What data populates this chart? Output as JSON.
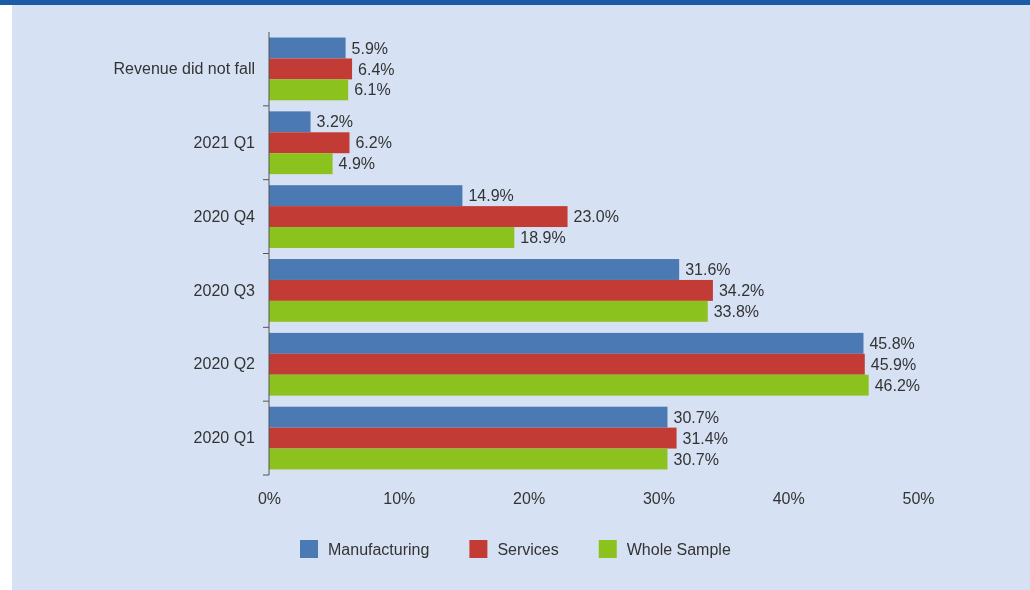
{
  "chart_data": {
    "type": "bar",
    "orientation": "horizontal",
    "categories": [
      "Revenue did not fall",
      "2021 Q1",
      "2020 Q4",
      "2020 Q3",
      "2020 Q2",
      "2020 Q1"
    ],
    "series": [
      {
        "name": "Manufacturing",
        "color": "#4b79b4",
        "values": [
          5.9,
          3.2,
          14.9,
          31.6,
          45.8,
          30.7
        ],
        "value_labels": [
          "5.9%",
          "3.2%",
          "14.9%",
          "31.6%",
          "45.8%",
          "30.7%"
        ]
      },
      {
        "name": "Services",
        "color": "#c33b35",
        "values": [
          6.4,
          6.2,
          23.0,
          34.2,
          45.9,
          31.4
        ],
        "value_labels": [
          "6.4%",
          "6.2%",
          "23.0%",
          "34.2%",
          "45.9%",
          "31.4%"
        ]
      },
      {
        "name": "Whole Sample",
        "color": "#8cc21e",
        "values": [
          6.1,
          4.9,
          18.9,
          33.8,
          46.2,
          30.7
        ],
        "value_labels": [
          "6.1%",
          "4.9%",
          "18.9%",
          "33.8%",
          "46.2%",
          "30.7%"
        ]
      }
    ],
    "xlim": [
      0,
      50
    ],
    "xticks": [
      {
        "value": 0,
        "label": "0%"
      },
      {
        "value": 10,
        "label": "10%"
      },
      {
        "value": 20,
        "label": "20%"
      },
      {
        "value": 30,
        "label": "30%"
      },
      {
        "value": 40,
        "label": "40%"
      },
      {
        "value": 50,
        "label": "50%"
      }
    ],
    "grid": false,
    "legend": "bottom"
  }
}
